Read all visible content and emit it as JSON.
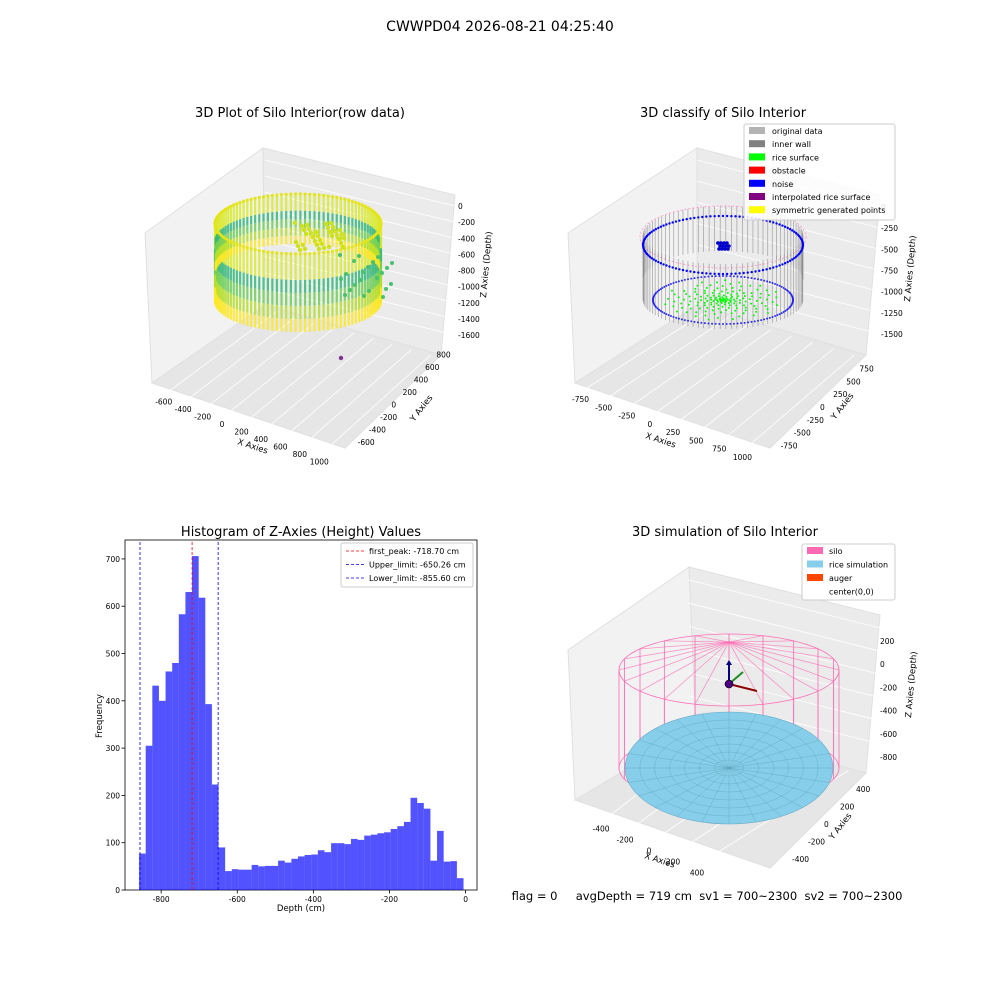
{
  "suptitle": "CWWPD04 2026-08-21 04:25:40",
  "panels": {
    "raw": {
      "title": "3D Plot of Silo Interior(row data)",
      "xlabel": "X Axies",
      "ylabel": "Y Axies",
      "zlabel": "Z Axies (Depth)",
      "xticks": [
        "-600",
        "-400",
        "-200",
        "0",
        "200",
        "400",
        "600",
        "800",
        "1000"
      ],
      "yticks": [
        "-600",
        "-400",
        "-200",
        "0",
        "200",
        "400",
        "600",
        "800"
      ],
      "zticks": [
        "0",
        "-200",
        "-400",
        "-600",
        "-800",
        "-1000",
        "-1200",
        "-1400",
        "-1600"
      ]
    },
    "classify": {
      "title": "3D classify of Silo Interior",
      "xlabel": "X Axies",
      "ylabel": "Y Axies",
      "zlabel": "Z Axies (Depth)",
      "xticks": [
        "-750",
        "-500",
        "-250",
        "0",
        "250",
        "500",
        "750",
        "1000"
      ],
      "yticks": [
        "-750",
        "-500",
        "-250",
        "0",
        "250",
        "500",
        "750"
      ],
      "zticks": [
        "0",
        "-250",
        "-500",
        "-750",
        "-1000",
        "-1250",
        "-1500"
      ],
      "legend": [
        {
          "label": "original data",
          "color": "#b3b3b3"
        },
        {
          "label": "inner wall",
          "color": "#808080"
        },
        {
          "label": "rice surface",
          "color": "#00ff00"
        },
        {
          "label": "obstacle",
          "color": "#ff0000"
        },
        {
          "label": "noise",
          "color": "#0000ff"
        },
        {
          "label": "interpolated rice surface",
          "color": "#800080"
        },
        {
          "label": "symmetric generated points",
          "color": "#ffff00"
        }
      ]
    },
    "simulation": {
      "title": "3D simulation of Silo Interior",
      "xlabel": "X Axies",
      "ylabel": "Y Axies",
      "zlabel": "Z Axies (Depth)",
      "xticks": [
        "-400",
        "-200",
        "0",
        "200",
        "400"
      ],
      "yticks": [
        "-400",
        "-200",
        "0",
        "200",
        "400"
      ],
      "zticks": [
        "200",
        "0",
        "-200",
        "-400",
        "-600",
        "-800"
      ],
      "legend": [
        {
          "label": "silo",
          "color": "#ff69b4"
        },
        {
          "label": "rice simulation",
          "color": "#87ceeb"
        },
        {
          "label": "auger",
          "color": "#ff4500"
        },
        {
          "label": "center(0,0)",
          "color": "none"
        }
      ],
      "footer": "flag = 0     avgDepth = 719 cm  sv1 = 700~2300  sv2 = 700~2300"
    }
  },
  "chart_data": {
    "type": "bar",
    "title": "Histogram of Z-Axies (Height) Values",
    "xlabel": "Depth (cm)",
    "ylabel": "Frequency",
    "xlim": [
      -895,
      30
    ],
    "ylim": [
      0,
      740
    ],
    "xticks": [
      -800,
      -600,
      -400,
      -200,
      0
    ],
    "yticks": [
      0,
      100,
      200,
      300,
      400,
      500,
      600,
      700
    ],
    "bar_color": "#0000ff",
    "bin_width": 17.4,
    "bin_start": -858,
    "values": [
      77,
      305,
      432,
      400,
      462,
      480,
      583,
      630,
      706,
      618,
      393,
      223,
      90,
      40,
      44,
      43,
      43,
      53,
      50,
      51,
      51,
      62,
      58,
      66,
      71,
      74,
      75,
      84,
      80,
      99,
      99,
      97,
      108,
      106,
      115,
      117,
      120,
      122,
      129,
      135,
      144,
      195,
      184,
      172,
      62,
      125,
      60,
      61,
      25
    ],
    "vlines": [
      {
        "label": "first_peak: -718.70 cm",
        "x": -718.7,
        "color": "#ff0000"
      },
      {
        "label": "Upper_limit: -650.26 cm",
        "x": -650.26,
        "color": "#0000ff"
      },
      {
        "label": "Lower_limit: -855.60 cm",
        "x": -855.6,
        "color": "#0000ff"
      }
    ],
    "legend_position": "top-right"
  }
}
